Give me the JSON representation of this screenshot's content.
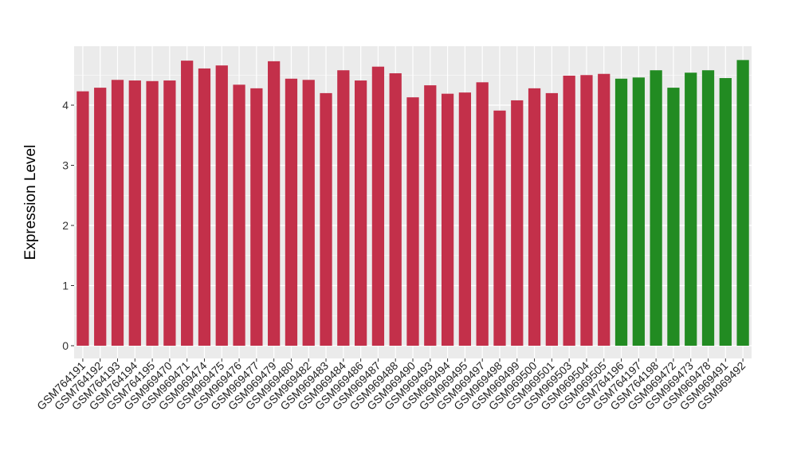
{
  "chart_data": {
    "type": "bar",
    "title": "",
    "xlabel": "",
    "ylabel": "Expression Level",
    "ylim": [
      -0.2,
      5.0
    ],
    "yticks": [
      0,
      1,
      2,
      3,
      4
    ],
    "grid": true,
    "colors": {
      "group1": "#C3304A",
      "group2": "#228B22",
      "panel": "#EBEBEB",
      "grid": "#FFFFFF"
    },
    "categories": [
      "GSM764191",
      "GSM764192",
      "GSM764193",
      "GSM764194",
      "GSM764195",
      "GSM969470",
      "GSM969471",
      "GSM969474",
      "GSM969475",
      "GSM969476",
      "GSM969477",
      "GSM969479",
      "GSM969480",
      "GSM969482",
      "GSM969483",
      "GSM969484",
      "GSM969486",
      "GSM969487",
      "GSM969488",
      "GSM969490",
      "GSM969493",
      "GSM969494",
      "GSM969495",
      "GSM969497",
      "GSM969498",
      "GSM969499",
      "GSM969500",
      "GSM969501",
      "GSM969503",
      "GSM969504",
      "GSM969505",
      "GSM764196",
      "GSM764197",
      "GSM764198",
      "GSM969472",
      "GSM969473",
      "GSM969478",
      "GSM969491",
      "GSM969492"
    ],
    "values": [
      4.23,
      4.29,
      4.42,
      4.41,
      4.4,
      4.41,
      4.74,
      4.61,
      4.66,
      4.34,
      4.28,
      4.73,
      4.44,
      4.42,
      4.2,
      4.58,
      4.41,
      4.64,
      4.53,
      4.13,
      4.33,
      4.19,
      4.21,
      4.38,
      3.91,
      4.08,
      4.28,
      4.2,
      4.49,
      4.5,
      4.52,
      4.44,
      4.46,
      4.58,
      4.29,
      4.54,
      4.58,
      4.45,
      4.75
    ],
    "groups": [
      "group1",
      "group1",
      "group1",
      "group1",
      "group1",
      "group1",
      "group1",
      "group1",
      "group1",
      "group1",
      "group1",
      "group1",
      "group1",
      "group1",
      "group1",
      "group1",
      "group1",
      "group1",
      "group1",
      "group1",
      "group1",
      "group1",
      "group1",
      "group1",
      "group1",
      "group1",
      "group1",
      "group1",
      "group1",
      "group1",
      "group1",
      "group2",
      "group2",
      "group2",
      "group2",
      "group2",
      "group2",
      "group2",
      "group2"
    ]
  }
}
